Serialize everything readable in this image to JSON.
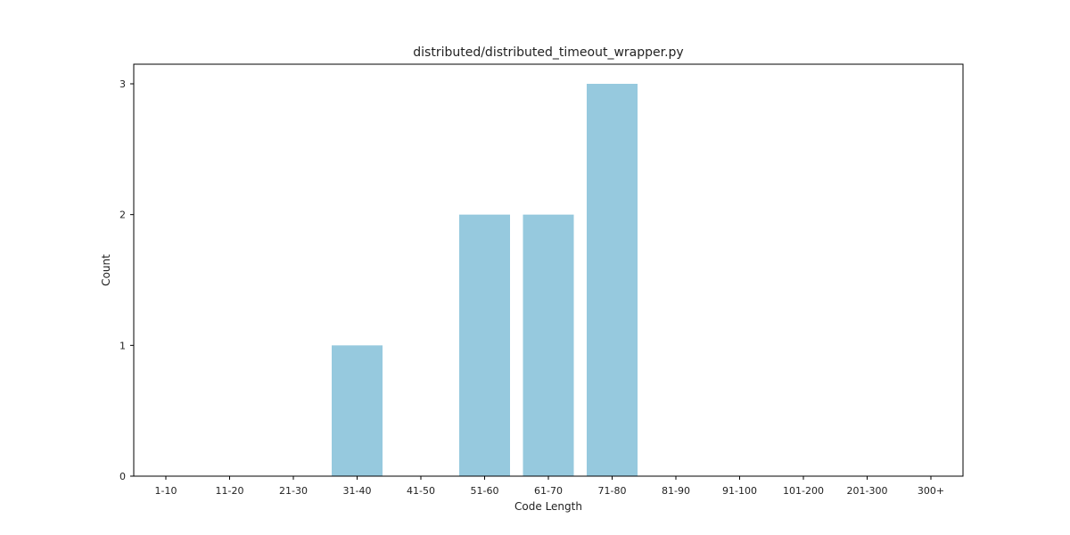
{
  "chart_data": {
    "type": "bar",
    "title": "distributed/distributed_timeout_wrapper.py",
    "xlabel": "Code Length",
    "ylabel": "Count",
    "categories": [
      "1-10",
      "11-20",
      "21-30",
      "31-40",
      "41-50",
      "51-60",
      "61-70",
      "71-80",
      "81-90",
      "91-100",
      "101-200",
      "201-300",
      "300+"
    ],
    "values": [
      0,
      0,
      0,
      1,
      0,
      2,
      2,
      3,
      0,
      0,
      0,
      0,
      0
    ],
    "ylim": [
      0,
      3.15
    ],
    "yticks": [
      0,
      1,
      2,
      3
    ],
    "grid": false,
    "bar_color": "#96c9de"
  }
}
